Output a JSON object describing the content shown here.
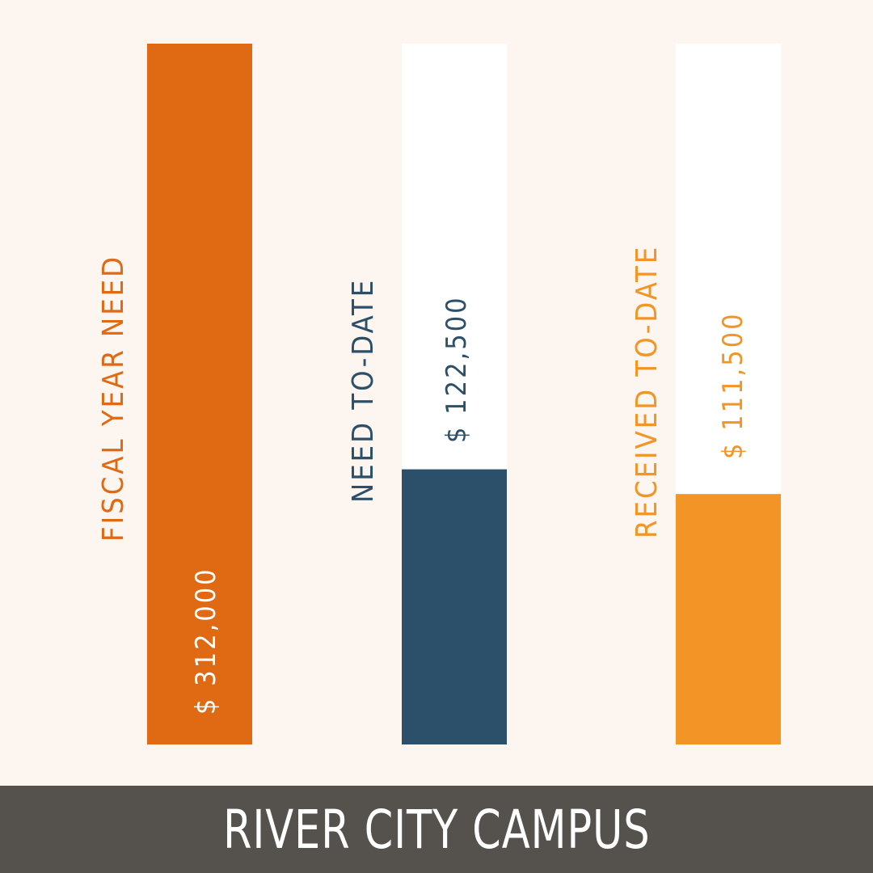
{
  "chart_data": {
    "type": "bar",
    "orientation": "vertical",
    "categories": [
      "FISCAL YEAR NEED",
      "NEED TO-DATE",
      "RECEIVED TO-DATE"
    ],
    "values": [
      312000,
      122500,
      111500
    ],
    "value_labels": [
      "$ 312,000",
      "$ 122,500",
      "$ 111,500"
    ],
    "ylim": [
      0,
      312000
    ],
    "grid": false,
    "legend": "none",
    "label_colors": [
      "#e06914",
      "#2c5069",
      "#f39426"
    ],
    "value_label_colors": [
      "#ffffff",
      "#2c5069",
      "#f39426"
    ],
    "bar_colors": [
      "#e06914",
      "#2c5069",
      "#f39426"
    ],
    "track_color": "#ffffff",
    "title": ""
  },
  "footer": {
    "title": "RIVER CITY CAMPUS",
    "background": "#55524d"
  },
  "background": "#fdf5ef"
}
